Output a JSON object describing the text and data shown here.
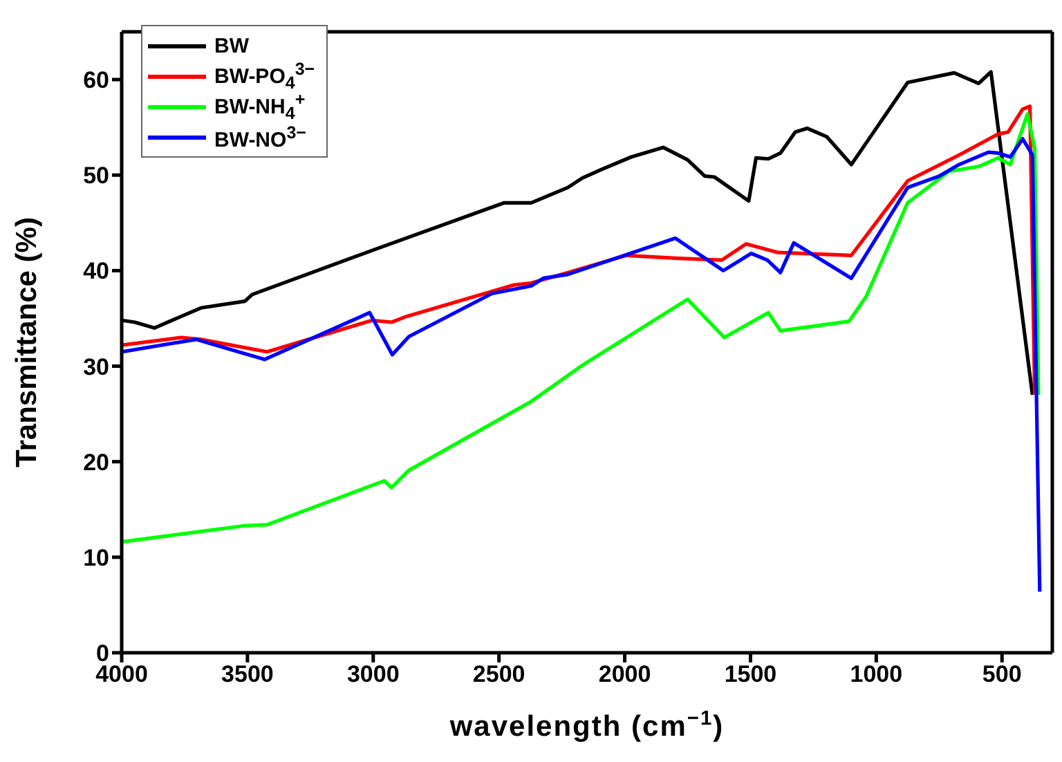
{
  "chart_data": {
    "type": "line",
    "xlabel": "wavelength (cm$^{−1}$)",
    "ylabel": "Transmittance (%)",
    "xlim": [
      4000,
      300
    ],
    "xticks": [
      4000,
      3500,
      3000,
      2500,
      2000,
      1500,
      1000,
      500
    ],
    "ylim": [
      0,
      65
    ],
    "yticks": [
      0,
      10,
      20,
      30,
      40,
      50,
      60
    ],
    "legend": "top left",
    "marker": "none",
    "line_style": "solid",
    "series": [
      {
        "name": "BW",
        "color": "#000000",
        "x": [
          4000,
          3948,
          3870,
          3685,
          3510,
          3481,
          2985,
          2479,
          2372,
          2226,
          2168,
          2091,
          1974,
          1847,
          1750,
          1682,
          1643,
          1507,
          1478,
          1429,
          1381,
          1322,
          1274,
          1196,
          1099,
          875,
          690,
          593,
          544,
          379
        ],
        "values": [
          34.8,
          34.6,
          34.0,
          36.1,
          36.8,
          37.5,
          42.3,
          47.1,
          47.1,
          48.7,
          49.7,
          50.6,
          51.9,
          52.9,
          51.6,
          49.9,
          49.8,
          47.3,
          51.8,
          51.7,
          52.3,
          54.5,
          54.9,
          54.0,
          51.1,
          59.7,
          60.7,
          59.6,
          60.8,
          27
        ]
      },
      {
        "name": "BW-PO$_{4}$$^{3−}$",
        "color": "#ff0000",
        "x": [
          4000,
          3763,
          3685,
          3422,
          3004,
          2927,
          2868,
          2440,
          2372,
          2226,
          1993,
          1799,
          1614,
          1517,
          1390,
          1099,
          875,
          671,
          515,
          476,
          418,
          389,
          370
        ],
        "values": [
          32.2,
          33.0,
          32.8,
          31.5,
          34.8,
          34.6,
          35.2,
          38.5,
          38.7,
          39.8,
          41.6,
          41.3,
          41.1,
          42.8,
          41.9,
          41.6,
          49.4,
          52.1,
          54.3,
          54.5,
          56.9,
          57.2,
          27
        ]
      },
      {
        "name": "BW-NH$_{4}$$^{+}$",
        "color": "#00ff00",
        "x": [
          4000,
          3510,
          3422,
          2956,
          2927,
          2858,
          2372,
          2168,
          1750,
          1604,
          1429,
          1381,
          1108,
          1040,
          875,
          710,
          593,
          515,
          467,
          399,
          370,
          355
        ],
        "values": [
          11.6,
          13.3,
          13.4,
          18.0,
          17.3,
          19.1,
          26.3,
          30.1,
          37.0,
          33.0,
          35.6,
          33.7,
          34.7,
          37.3,
          47.1,
          50.4,
          50.9,
          51.8,
          51.1,
          56.4,
          52.8,
          27
        ]
      },
      {
        "name": "BW-NO$^{3−}$",
        "color": "#0000ff",
        "x": [
          4000,
          3704,
          3432,
          3014,
          2924,
          2858,
          2528,
          2372,
          2324,
          2226,
          1799,
          1608,
          1497,
          1433,
          1381,
          1328,
          1099,
          875,
          749,
          671,
          554,
          515,
          467,
          418,
          379,
          350
        ],
        "values": [
          31.5,
          32.8,
          30.7,
          35.6,
          31.2,
          33.1,
          37.6,
          38.4,
          39.2,
          39.6,
          43.4,
          40.0,
          41.8,
          41.1,
          39.8,
          42.9,
          39.2,
          48.7,
          49.9,
          51.1,
          52.4,
          52.3,
          51.9,
          53.8,
          52.1,
          6.4
        ]
      }
    ]
  }
}
